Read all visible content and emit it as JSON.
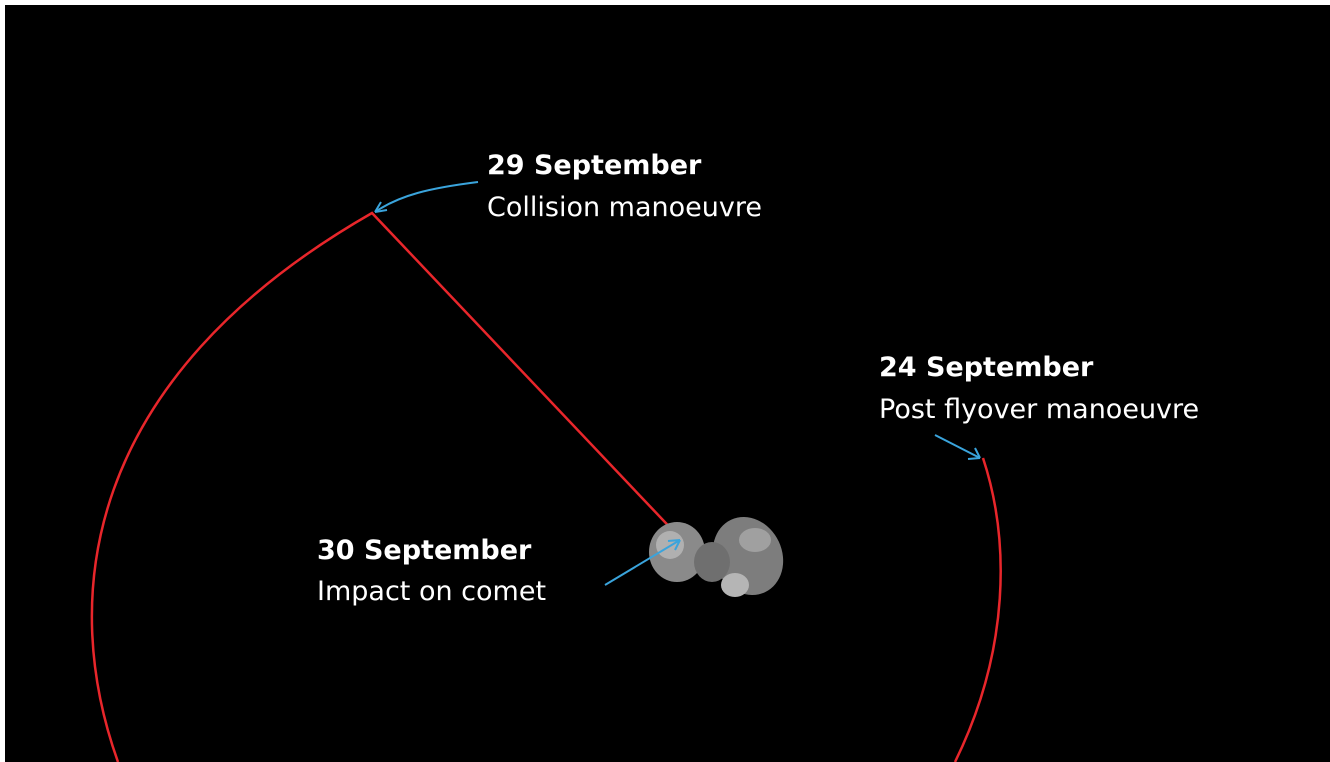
{
  "annotations": [
    {
      "date": "29 September",
      "label": "Collision manoeuvre"
    },
    {
      "date": "24 September",
      "label": "Post flyover manoeuvre"
    },
    {
      "date": "30 September",
      "label": "Impact on comet"
    }
  ]
}
